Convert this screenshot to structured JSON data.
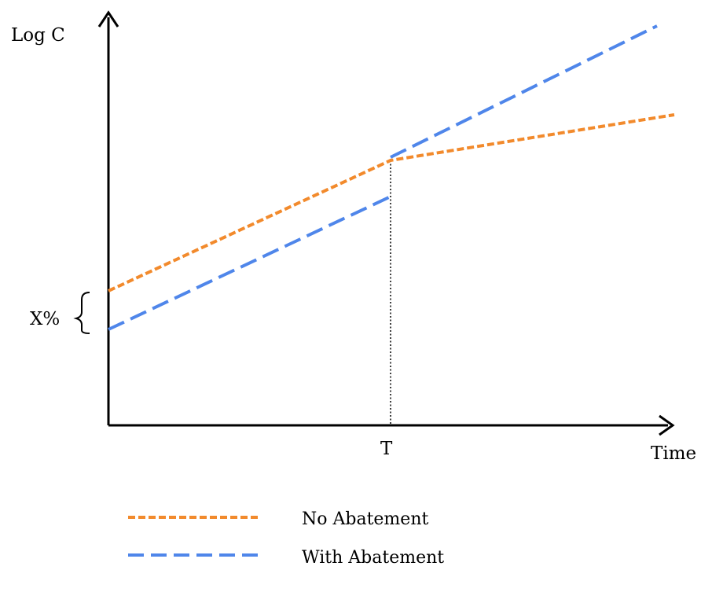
{
  "diagram": {
    "y_axis_label": "Log C",
    "x_axis_label": "Time",
    "t_label": "T",
    "gap_label": "X%",
    "legend": {
      "no_abatement": "No Abatement",
      "with_abatement": "With Abatement"
    },
    "colors": {
      "no_abatement": "#f28a2c",
      "with_abatement": "#4f86ea",
      "axis": "#000000"
    }
  }
}
